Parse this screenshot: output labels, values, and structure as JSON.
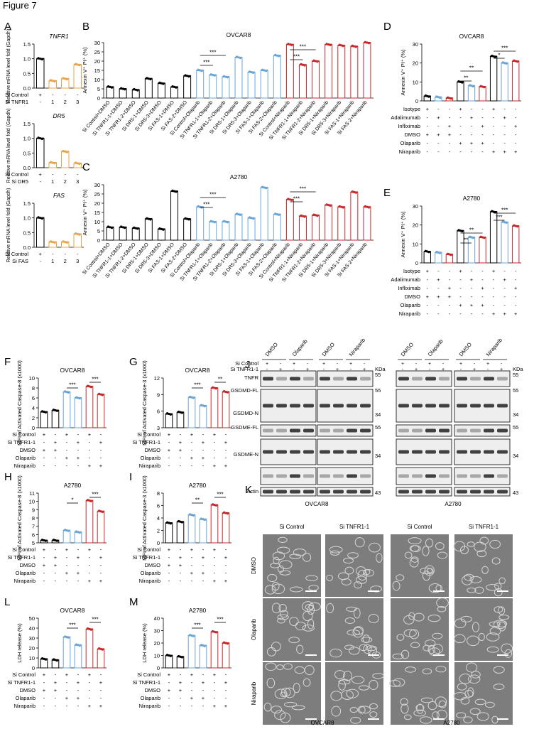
{
  "figure_title": "Figure 7",
  "colors": {
    "black": "#000000",
    "blue": "#6aa5d7",
    "red": "#c8282a",
    "orange": "#e8a54a",
    "grey": "#808080"
  },
  "panel_A": {
    "letter": "A",
    "genes": [
      {
        "title": "TNFR1",
        "si_label": "Si TNFR1",
        "values": [
          1.0,
          0.25,
          0.32,
          0.8
        ],
        "color": "#e8a54a"
      },
      {
        "title": "DR5",
        "si_label": "Si DR5",
        "values": [
          1.0,
          0.17,
          0.55,
          0.15
        ],
        "color": "#e8a54a"
      },
      {
        "title": "FAS",
        "si_label": "Si FAS",
        "values": [
          1.0,
          0.18,
          0.18,
          0.45
        ],
        "color": "#e8a54a"
      }
    ],
    "ylabel": "Relative mRNA level fold (Gapdh)",
    "yticks": [
      "0.0",
      "0.5",
      "1.0",
      "1.5"
    ],
    "ctrl_label": "Si Control",
    "ctrl_signs": [
      "+",
      "-",
      "-",
      "-"
    ],
    "si_signs": [
      "-",
      "1",
      "2",
      "3"
    ]
  },
  "panel_B": {
    "letter": "B",
    "title": "OVCAR8",
    "ylabel": "Annexin V⁺ PI⁺ (%)",
    "yticks": [
      "0",
      "5",
      "10",
      "15",
      "20",
      "25",
      "30"
    ],
    "stars": [
      "***",
      "***",
      "***",
      "***"
    ]
  },
  "panel_C": {
    "letter": "C",
    "title": "A2780",
    "ylabel": "Annexin V⁺ PI⁺ (%)",
    "yticks": [
      "0",
      "5",
      "10",
      "15",
      "20",
      "25",
      "30"
    ],
    "stars": [
      "***",
      "***",
      "***",
      "***"
    ]
  },
  "categories_BC": [
    "Si Control+DMSO",
    "Si TNFR1-1+DMSO",
    "Si TNFR1-2+DMSO",
    "Si DR5-1+DMSO",
    "Si DR5-3+DMSO",
    "Si FAS-1+DMSO",
    "Si FAS-2+DMSO",
    "Si Control+Olaparib",
    "Si TNFR1-1+Olaparib",
    "Si TNFR1-2+Olaparib",
    "Si DR5-1+Olaparib",
    "Si DR5-3+Olaparib",
    "Si FAS-1+Olaparib",
    "Si FAS-2+Olaparib",
    "Si Control+Niraparib",
    "Si TNFR1-1+Niraparib",
    "Si TNFR1-2+Niraparib",
    "Si DR5-1+Niraparib",
    "Si DR5-3+Niraparib",
    "Si FAS-1+Niraparib",
    "Si FAS-2+Niraparib"
  ],
  "panel_D": {
    "letter": "D",
    "title": "OVCAR8",
    "ylabel": "Annexin V⁺ PI⁺ (%)",
    "yticks": [
      "0",
      "10",
      "20",
      "30"
    ],
    "stars": [
      "**",
      "**",
      "***",
      "*"
    ]
  },
  "panel_E": {
    "letter": "E",
    "title": "A2780",
    "ylabel": "Annexin V⁺ PI⁺ (%)",
    "yticks": [
      "0",
      "10",
      "20",
      "30"
    ],
    "stars": [
      "**",
      "**",
      "***",
      "***"
    ]
  },
  "DE_rows": [
    {
      "label": "Isotype",
      "signs": [
        "+",
        "-",
        "-",
        "+",
        "-",
        "-",
        "+",
        "-",
        "-"
      ]
    },
    {
      "label": "Adalimumab",
      "signs": [
        "-",
        "+",
        "-",
        "-",
        "+",
        "-",
        "-",
        "+",
        "-"
      ]
    },
    {
      "label": "Infliximab",
      "signs": [
        "-",
        "-",
        "+",
        "-",
        "-",
        "+",
        "-",
        "-",
        "+"
      ]
    },
    {
      "label": "DMSO",
      "signs": [
        "+",
        "+",
        "+",
        "-",
        "-",
        "-",
        "-",
        "-",
        "-"
      ]
    },
    {
      "label": "Olaparib",
      "signs": [
        "-",
        "-",
        "-",
        "+",
        "+",
        "+",
        "-",
        "-",
        "-"
      ]
    },
    {
      "label": "Niraparib",
      "signs": [
        "-",
        "-",
        "-",
        "-",
        "-",
        "-",
        "+",
        "+",
        "+"
      ]
    }
  ],
  "small_rows": [
    {
      "label": "Si Control",
      "signs": [
        "+",
        "-",
        "+",
        "-",
        "+",
        "-"
      ]
    },
    {
      "label": "Si TNFR1-1",
      "signs": [
        "-",
        "+",
        "-",
        "+",
        "-",
        "+"
      ]
    },
    {
      "label": "DMSO",
      "signs": [
        "+",
        "+",
        "-",
        "-",
        "-",
        "-"
      ]
    },
    {
      "label": "Olaparib",
      "signs": [
        "-",
        "-",
        "+",
        "+",
        "-",
        "-"
      ]
    },
    {
      "label": "Niraparib",
      "signs": [
        "-",
        "-",
        "-",
        "-",
        "+",
        "+"
      ]
    }
  ],
  "panel_F": {
    "letter": "F",
    "title": "OVCAR8",
    "ylabel": "MFI of Activated Caspase-8 (x1000)",
    "yticks": [
      "0",
      "2",
      "4",
      "6",
      "8",
      "10"
    ],
    "stars": [
      "***",
      "***"
    ]
  },
  "panel_G": {
    "letter": "G",
    "title": "OVCAR8",
    "ylabel": "MFI of Activated Caspase-3 (x1000)",
    "yticks": [
      "3",
      "6",
      "9",
      "12"
    ],
    "stars": [
      "***",
      "**"
    ]
  },
  "panel_H": {
    "letter": "H",
    "title": "A2780",
    "ylabel": "MFI of Activated Caspase-8 (x1000)",
    "yticks": [
      "5",
      "6",
      "7",
      "8",
      "9",
      "10",
      "11"
    ],
    "stars": [
      "*",
      "***"
    ]
  },
  "panel_I": {
    "letter": "I",
    "title": "A2780",
    "ylabel": "MFI of Activated Caspase-3 (x1000)",
    "yticks": [
      "0",
      "2",
      "4",
      "6",
      "8"
    ],
    "stars": [
      "**",
      "***"
    ]
  },
  "panel_L": {
    "letter": "L",
    "title": "OVCAR8",
    "ylabel": "LDH release (%)",
    "yticks": [
      "0",
      "10",
      "20",
      "30",
      "40",
      "50"
    ],
    "stars": [
      "***",
      "***"
    ]
  },
  "panel_M": {
    "letter": "M",
    "title": "A2780",
    "ylabel": "LDH release (%)",
    "yticks": [
      "0",
      "10",
      "20",
      "30",
      "40"
    ],
    "stars": [
      "***",
      "***"
    ]
  },
  "panel_J": {
    "letter": "J",
    "treatments": [
      "DMSO",
      "Olaparib",
      "DMSO",
      "Niraparib",
      "DMSO",
      "Olaparib",
      "DMSO",
      "Niraparib"
    ],
    "si_control": "Si Control",
    "si_tnfr": "Si TNFR1-1",
    "kda": "KDa",
    "bands_left": [
      "TNFR",
      "GSDMD-FL",
      "GSDMD-N",
      "GSDME-FL",
      "GSDME-N",
      "Actin"
    ],
    "mw": [
      "55",
      "55",
      "34",
      "55",
      "34",
      "43"
    ],
    "cell_lines": [
      "OVCAR8",
      "A2780"
    ]
  },
  "panel_K": {
    "letter": "K",
    "cols": [
      "Si Control",
      "Si TNFR1-1",
      "Si Control",
      "Si TNFR1-1"
    ],
    "rows": [
      "DMSO",
      "Olaparib",
      "Niraparib"
    ],
    "cell_lines": [
      "OVCAR8",
      "A2780"
    ]
  },
  "chart_data": [
    {
      "type": "bar",
      "panel": "A-TNFR1",
      "categories": [
        "Si Control",
        "Si TNFR1-1",
        "Si TNFR1-2",
        "Si TNFR1-3"
      ],
      "values": [
        1.0,
        0.25,
        0.32,
        0.8
      ],
      "ylim": [
        0,
        1.5
      ]
    },
    {
      "type": "bar",
      "panel": "A-DR5",
      "categories": [
        "Si Control",
        "Si DR5-1",
        "Si DR5-2",
        "Si DR5-3"
      ],
      "values": [
        1.0,
        0.17,
        0.55,
        0.15
      ],
      "ylim": [
        0,
        1.5
      ]
    },
    {
      "type": "bar",
      "panel": "A-FAS",
      "categories": [
        "Si Control",
        "Si FAS-1",
        "Si FAS-2",
        "Si FAS-3"
      ],
      "values": [
        1.0,
        0.18,
        0.18,
        0.45
      ],
      "ylim": [
        0,
        1.5
      ]
    },
    {
      "type": "bar",
      "panel": "B",
      "title": "OVCAR8",
      "ylabel": "Annexin V⁺ PI⁺ (%)",
      "ylim": [
        0,
        30
      ],
      "values": [
        6,
        5,
        4.5,
        10.5,
        8,
        6,
        12,
        15,
        12.5,
        11.5,
        22,
        14,
        15,
        23,
        29,
        18,
        20,
        29,
        28.5,
        28,
        30
      ]
    },
    {
      "type": "bar",
      "panel": "C",
      "title": "A2780",
      "ylabel": "Annexin V⁺ PI⁺ (%)",
      "ylim": [
        0,
        30
      ],
      "values": [
        7,
        7,
        6.5,
        11.5,
        6,
        26.5,
        11.5,
        18,
        10,
        10,
        14,
        12,
        28.5,
        14,
        22,
        13,
        13.5,
        19,
        18,
        26,
        18
      ]
    },
    {
      "type": "bar",
      "panel": "D",
      "title": "OVCAR8",
      "ylim": [
        0,
        30
      ],
      "values": [
        2.5,
        2,
        1.5,
        10,
        8,
        7.5,
        23.5,
        20,
        21
      ]
    },
    {
      "type": "bar",
      "panel": "E",
      "title": "A2780",
      "ylim": [
        0,
        30
      ],
      "values": [
        6,
        5.5,
        4.5,
        17,
        13.5,
        13.5,
        27,
        21.5,
        19.5
      ]
    },
    {
      "type": "bar",
      "panel": "F",
      "title": "OVCAR8",
      "ylim": [
        0,
        10
      ],
      "values": [
        3.2,
        3.5,
        7.2,
        6.0,
        8.3,
        6.7
      ]
    },
    {
      "type": "bar",
      "panel": "G",
      "title": "OVCAR8",
      "ylim": [
        3,
        12
      ],
      "values": [
        5.5,
        5.8,
        8.5,
        7.0,
        10.2,
        9.5
      ]
    },
    {
      "type": "bar",
      "panel": "H",
      "title": "A2780",
      "ylim": [
        5,
        11
      ],
      "values": [
        5.3,
        5.3,
        6.5,
        6.3,
        10.1,
        8.8
      ]
    },
    {
      "type": "bar",
      "panel": "I",
      "title": "A2780",
      "ylim": [
        0,
        8
      ],
      "values": [
        3.2,
        3.4,
        4.5,
        3.8,
        6.1,
        4.8
      ]
    },
    {
      "type": "bar",
      "panel": "L",
      "title": "OVCAR8",
      "ylim": [
        0,
        50
      ],
      "values": [
        9,
        8,
        31,
        23,
        39,
        19
      ]
    },
    {
      "type": "bar",
      "panel": "M",
      "title": "A2780",
      "ylim": [
        0,
        40
      ],
      "values": [
        10,
        9,
        26,
        18,
        29,
        20
      ]
    }
  ]
}
